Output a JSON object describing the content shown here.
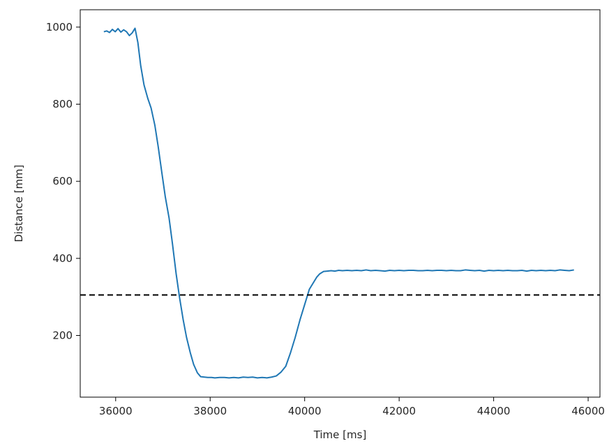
{
  "chart_data": {
    "type": "line",
    "title": "",
    "xlabel": "Time [ms]",
    "ylabel": "Distance [mm]",
    "xlim": [
      35250,
      46250
    ],
    "ylim": [
      40,
      1045
    ],
    "xticks": [
      36000,
      38000,
      40000,
      42000,
      44000,
      46000
    ],
    "yticks": [
      200,
      400,
      600,
      800,
      1000
    ],
    "grid": false,
    "legend": "none",
    "colors": {
      "series": "#1f77b4",
      "reference": "#000000",
      "text": "#262626",
      "frame": "#000000"
    },
    "reference_line": {
      "y": 305,
      "style": "dashed",
      "color": "#000000"
    },
    "series": [
      {
        "color": "#1f77b4",
        "x": [
          35750,
          35810,
          35870,
          35930,
          35990,
          36050,
          36110,
          36170,
          36230,
          36290,
          36350,
          36410,
          36470,
          36530,
          36600,
          36680,
          36750,
          36830,
          36900,
          36980,
          37050,
          37130,
          37200,
          37280,
          37350,
          37430,
          37500,
          37580,
          37650,
          37730,
          37800,
          37880,
          37950,
          38030,
          38100,
          38200,
          38300,
          38400,
          38500,
          38600,
          38700,
          38800,
          38900,
          39000,
          39100,
          39200,
          39300,
          39400,
          39500,
          39600,
          39700,
          39800,
          39900,
          40000,
          40100,
          40200,
          40260,
          40320,
          40400,
          40480,
          40560,
          40640,
          40720,
          40800,
          40900,
          41000,
          41100,
          41200,
          41300,
          41400,
          41500,
          41600,
          41700,
          41800,
          41900,
          42000,
          42100,
          42200,
          42300,
          42400,
          42500,
          42600,
          42700,
          42800,
          42900,
          43000,
          43100,
          43200,
          43300,
          43400,
          43500,
          43600,
          43700,
          43800,
          43900,
          44000,
          44100,
          44200,
          44300,
          44400,
          44500,
          44600,
          44700,
          44800,
          44900,
          45000,
          45100,
          45200,
          45300,
          45400,
          45500,
          45600,
          45700
        ],
        "y": [
          988,
          990,
          986,
          994,
          988,
          996,
          987,
          993,
          988,
          978,
          985,
          997,
          960,
          900,
          850,
          815,
          790,
          745,
          690,
          620,
          560,
          505,
          440,
          360,
          300,
          240,
          195,
          155,
          125,
          103,
          93,
          92,
          91,
          91,
          90,
          91,
          91,
          90,
          91,
          90,
          92,
          91,
          92,
          90,
          91,
          90,
          92,
          95,
          105,
          120,
          155,
          195,
          240,
          280,
          320,
          340,
          352,
          360,
          366,
          367,
          368,
          367,
          369,
          368,
          369,
          368,
          369,
          368,
          370,
          368,
          369,
          368,
          367,
          369,
          368,
          369,
          368,
          369,
          369,
          368,
          368,
          369,
          368,
          369,
          369,
          368,
          369,
          368,
          368,
          370,
          369,
          368,
          369,
          367,
          369,
          368,
          369,
          368,
          369,
          368,
          368,
          369,
          367,
          369,
          368,
          369,
          368,
          369,
          368,
          370,
          369,
          368,
          370
        ]
      }
    ]
  }
}
